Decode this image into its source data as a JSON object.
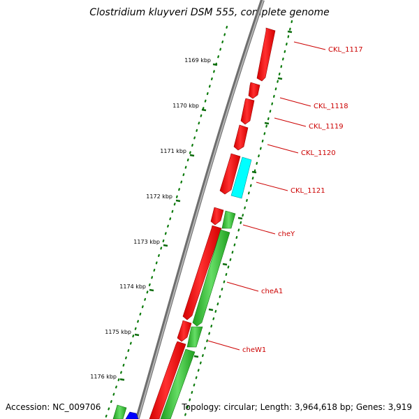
{
  "title": "Clostridium kluyveri DSM 555, complete genome",
  "accession": "Accession: NC_009706",
  "summary": "Topology: circular; Length: 3,964,618 bp; Genes: 3,919",
  "colors": {
    "backbone": "#888888",
    "forward_strand": "#ff0000",
    "reverse_strand": "#33cc33",
    "cyan_gene": "#00ffff",
    "blue_gene": "#0000ff",
    "gc_marks": "#006600",
    "label_line": "#cc0000"
  },
  "scale_labels": [
    "1169 kbp",
    "1170 kbp",
    "1171 kbp",
    "1172 kbp",
    "1173 kbp",
    "1174 kbp",
    "1175 kbp",
    "1176 kbp"
  ],
  "gene_labels": [
    "CKL_1117",
    "CKL_1118",
    "CKL_1119",
    "CKL_1120",
    "CKL_1121",
    "cheY",
    "cheA1",
    "cheW1"
  ]
}
